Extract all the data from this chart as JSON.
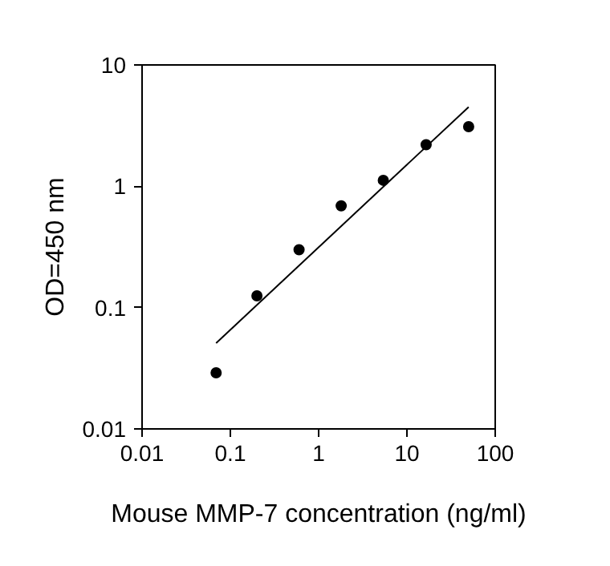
{
  "chart_data": {
    "type": "scatter",
    "xlabel": "Mouse MMP-7 concentration (ng/ml)",
    "ylabel": "OD=450 nm",
    "log": "xy",
    "grid": false,
    "xlim": [
      0.01,
      100
    ],
    "ylim": [
      0.01,
      10
    ],
    "xticks": [
      0.01,
      0.1,
      1,
      10,
      100
    ],
    "yticks": [
      0.01,
      0.1,
      1,
      10
    ],
    "x": [
      0.069,
      0.2,
      0.6,
      1.8,
      5.4,
      16.5,
      50
    ],
    "series": [
      {
        "marker": "circle",
        "color": "#000000",
        "values": [
          0.029,
          0.125,
          0.3,
          0.69,
          1.12,
          2.2,
          3.1
        ]
      },
      {
        "type": "line",
        "marker": "none",
        "color": "#000000",
        "x": [
          0.069,
          50
        ],
        "values": [
          0.051,
          4.5
        ]
      }
    ]
  }
}
